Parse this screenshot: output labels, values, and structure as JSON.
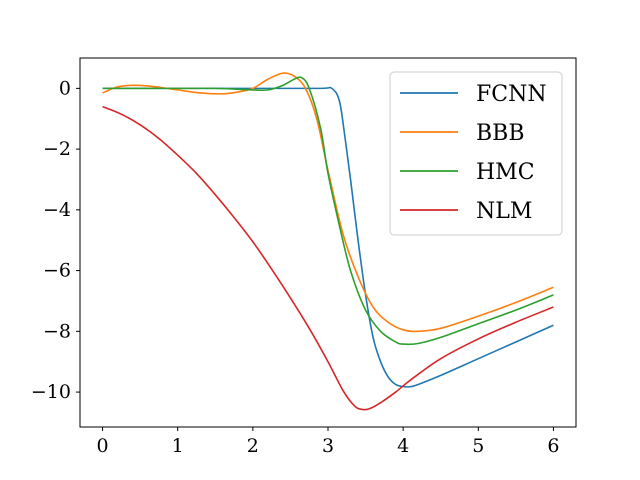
{
  "chart_data": {
    "type": "line",
    "title": "",
    "xlabel": "",
    "ylabel": "",
    "xlim": [
      -0.3,
      6.3
    ],
    "ylim": [
      -11.15,
      1.0
    ],
    "xticks": [
      0,
      1,
      2,
      3,
      4,
      5,
      6
    ],
    "xtick_labels": [
      "0",
      "1",
      "2",
      "3",
      "4",
      "5",
      "6"
    ],
    "yticks": [
      0,
      -2,
      -4,
      -6,
      -8,
      -10
    ],
    "ytick_labels": [
      "0",
      "−2",
      "−4",
      "−6",
      "−8",
      "−10"
    ],
    "grid": false,
    "legend_position": "top-right",
    "series": [
      {
        "name": "FCNN",
        "color": "#1f77b4",
        "points": [
          [
            0,
            0.0
          ],
          [
            1,
            0.0
          ],
          [
            2,
            0.0
          ],
          [
            2.9,
            0.0
          ],
          [
            3.05,
            0.0
          ],
          [
            3.15,
            -0.4
          ],
          [
            3.22,
            -1.5
          ],
          [
            3.3,
            -3.0
          ],
          [
            3.4,
            -5.0
          ],
          [
            3.5,
            -6.8
          ],
          [
            3.6,
            -8.2
          ],
          [
            3.7,
            -9.0
          ],
          [
            3.8,
            -9.5
          ],
          [
            3.9,
            -9.75
          ],
          [
            4.0,
            -9.82
          ],
          [
            4.1,
            -9.82
          ],
          [
            4.2,
            -9.75
          ],
          [
            4.5,
            -9.45
          ],
          [
            5.0,
            -8.9
          ],
          [
            5.5,
            -8.35
          ],
          [
            6.0,
            -7.8
          ]
        ]
      },
      {
        "name": "BBB",
        "color": "#ff7f0e",
        "points": [
          [
            0,
            -0.15
          ],
          [
            0.2,
            0.05
          ],
          [
            0.4,
            0.1
          ],
          [
            0.6,
            0.08
          ],
          [
            0.8,
            0.02
          ],
          [
            1.0,
            -0.05
          ],
          [
            1.3,
            -0.15
          ],
          [
            1.6,
            -0.18
          ],
          [
            1.8,
            -0.12
          ],
          [
            2.0,
            0.0
          ],
          [
            2.2,
            0.3
          ],
          [
            2.4,
            0.5
          ],
          [
            2.55,
            0.4
          ],
          [
            2.7,
            0.0
          ],
          [
            2.85,
            -1.0
          ],
          [
            3.0,
            -2.7
          ],
          [
            3.2,
            -4.8
          ],
          [
            3.4,
            -6.2
          ],
          [
            3.6,
            -7.2
          ],
          [
            3.8,
            -7.7
          ],
          [
            4.0,
            -7.95
          ],
          [
            4.2,
            -8.0
          ],
          [
            4.5,
            -7.9
          ],
          [
            5.0,
            -7.5
          ],
          [
            5.5,
            -7.05
          ],
          [
            6.0,
            -6.55
          ]
        ]
      },
      {
        "name": "HMC",
        "color": "#2ca02c",
        "points": [
          [
            0,
            0.0
          ],
          [
            0.5,
            0.0
          ],
          [
            1.0,
            0.0
          ],
          [
            1.5,
            0.0
          ],
          [
            2.0,
            -0.05
          ],
          [
            2.2,
            -0.05
          ],
          [
            2.4,
            0.1
          ],
          [
            2.55,
            0.3
          ],
          [
            2.65,
            0.35
          ],
          [
            2.75,
            0.0
          ],
          [
            2.9,
            -1.3
          ],
          [
            3.0,
            -2.8
          ],
          [
            3.15,
            -4.5
          ],
          [
            3.3,
            -6.0
          ],
          [
            3.5,
            -7.3
          ],
          [
            3.7,
            -8.0
          ],
          [
            3.9,
            -8.35
          ],
          [
            4.0,
            -8.42
          ],
          [
            4.2,
            -8.4
          ],
          [
            4.5,
            -8.2
          ],
          [
            5.0,
            -7.75
          ],
          [
            5.5,
            -7.3
          ],
          [
            6.0,
            -6.8
          ]
        ]
      },
      {
        "name": "NLM",
        "color": "#d62728",
        "points": [
          [
            0,
            -0.6
          ],
          [
            0.25,
            -0.85
          ],
          [
            0.5,
            -1.2
          ],
          [
            0.75,
            -1.65
          ],
          [
            1.0,
            -2.2
          ],
          [
            1.25,
            -2.8
          ],
          [
            1.5,
            -3.5
          ],
          [
            1.75,
            -4.25
          ],
          [
            2.0,
            -5.05
          ],
          [
            2.25,
            -5.95
          ],
          [
            2.5,
            -6.9
          ],
          [
            2.75,
            -7.9
          ],
          [
            3.0,
            -9.0
          ],
          [
            3.2,
            -9.95
          ],
          [
            3.35,
            -10.45
          ],
          [
            3.45,
            -10.57
          ],
          [
            3.55,
            -10.55
          ],
          [
            3.7,
            -10.35
          ],
          [
            3.9,
            -10.0
          ],
          [
            4.1,
            -9.6
          ],
          [
            4.5,
            -8.9
          ],
          [
            5.0,
            -8.25
          ],
          [
            5.5,
            -7.7
          ],
          [
            6.0,
            -7.2
          ]
        ]
      }
    ]
  }
}
